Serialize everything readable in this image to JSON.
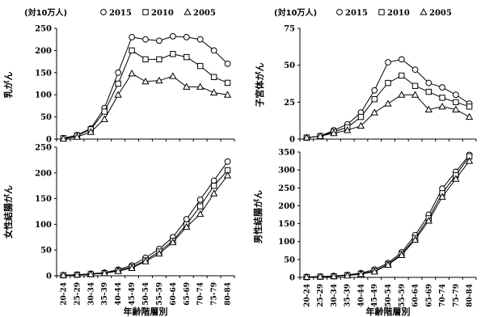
{
  "x_categories": [
    "20-24",
    "25-29",
    "30-34",
    "35-39",
    "40-44",
    "45-49",
    "50-54",
    "55-59",
    "60-64",
    "65-69",
    "70-74",
    "75-79",
    "80-84"
  ],
  "legend": [
    {
      "label": "2015",
      "marker": "circle"
    },
    {
      "label": "2010",
      "marker": "square"
    },
    {
      "label": "2005",
      "marker": "triangle"
    }
  ],
  "chart_data": [
    {
      "type": "line",
      "unit_label": "(対10万人)",
      "ylabel": "乳がん",
      "xlabel": "",
      "ylim": [
        0,
        250
      ],
      "yticks": [
        0,
        50,
        100,
        150,
        200,
        250
      ],
      "show_legend": true,
      "series": [
        {
          "name": "2015",
          "values": [
            2,
            9,
            24,
            70,
            150,
            230,
            225,
            222,
            232,
            230,
            225,
            200,
            170
          ]
        },
        {
          "name": "2010",
          "values": [
            2,
            8,
            22,
            62,
            125,
            200,
            180,
            180,
            192,
            185,
            165,
            140,
            127
          ]
        },
        {
          "name": "2005",
          "values": [
            1,
            5,
            16,
            45,
            100,
            148,
            130,
            132,
            142,
            118,
            118,
            105,
            100
          ]
        }
      ]
    },
    {
      "type": "line",
      "unit_label": "(対10万人)",
      "ylabel": "子宮体がん",
      "xlabel": "",
      "ylim": [
        0,
        75
      ],
      "yticks": [
        0,
        25,
        50,
        75
      ],
      "show_legend": true,
      "series": [
        {
          "name": "2015",
          "values": [
            1,
            2,
            6,
            10,
            18,
            33,
            52,
            54,
            47,
            38,
            35,
            30,
            24
          ]
        },
        {
          "name": "2010",
          "values": [
            1,
            2,
            5,
            8,
            15,
            27,
            38,
            43,
            36,
            32,
            28,
            25,
            22
          ]
        },
        {
          "name": "2005",
          "values": [
            1,
            2,
            4,
            6,
            9,
            18,
            24,
            30,
            30,
            20,
            22,
            20,
            15
          ]
        }
      ]
    },
    {
      "type": "line",
      "unit_label": "",
      "ylabel": "女性結腸がん",
      "xlabel": "年齢階層別",
      "ylim": [
        0,
        250
      ],
      "yticks": [
        0,
        50,
        100,
        150,
        200,
        250
      ],
      "show_legend": false,
      "series": [
        {
          "name": "2015",
          "values": [
            1,
            2,
            4,
            6,
            12,
            20,
            35,
            52,
            75,
            110,
            148,
            185,
            222
          ]
        },
        {
          "name": "2010",
          "values": [
            1,
            2,
            3,
            5,
            10,
            17,
            30,
            47,
            68,
            100,
            135,
            175,
            205
          ]
        },
        {
          "name": "2005",
          "values": [
            1,
            2,
            3,
            5,
            9,
            15,
            28,
            43,
            65,
            95,
            120,
            160,
            195
          ]
        }
      ]
    },
    {
      "type": "line",
      "unit_label": "",
      "ylabel": "男性結腸がん",
      "xlabel": "年齢階層別",
      "ylim": [
        0,
        350
      ],
      "yticks": [
        0,
        50,
        100,
        150,
        200,
        250,
        300,
        350
      ],
      "show_legend": false,
      "series": [
        {
          "name": "2015",
          "values": [
            1,
            2,
            4,
            7,
            12,
            22,
            40,
            70,
            118,
            175,
            248,
            295,
            342
          ]
        },
        {
          "name": "2010",
          "values": [
            1,
            2,
            3,
            6,
            10,
            18,
            36,
            65,
            110,
            165,
            235,
            285,
            338
          ]
        },
        {
          "name": "2005",
          "values": [
            1,
            2,
            3,
            5,
            9,
            16,
            35,
            62,
            105,
            158,
            225,
            275,
            325
          ]
        }
      ]
    }
  ]
}
